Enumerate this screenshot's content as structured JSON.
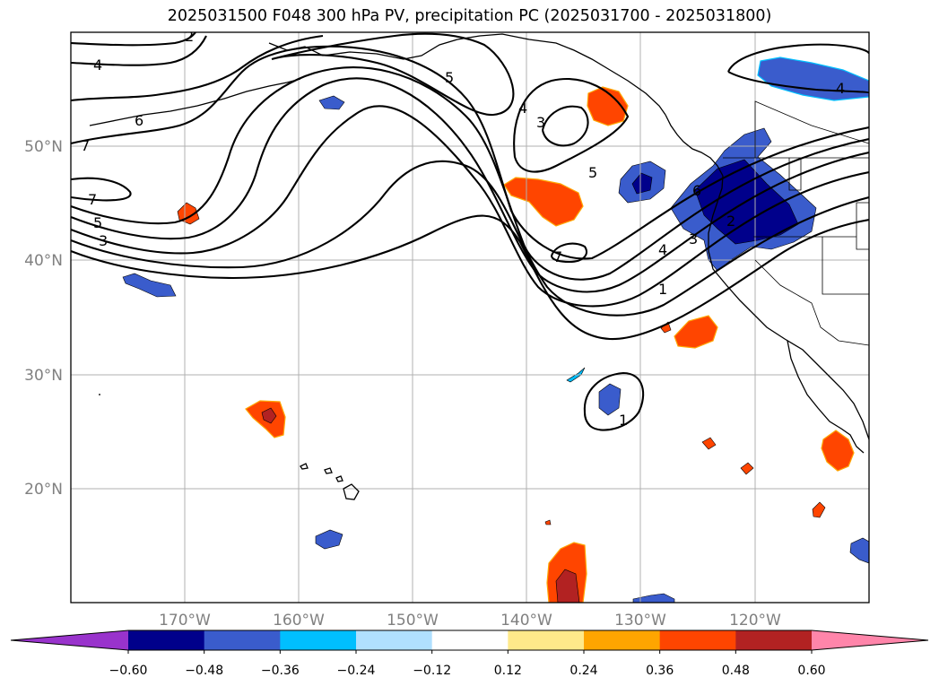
{
  "title": "2025031500 F048 300 hPa PV, precipitation PC (2025031700 - 2025031800)",
  "map": {
    "projection": "lat-lon",
    "lon_range": [
      -180,
      -110
    ],
    "lat_range": [
      10,
      60
    ],
    "grid": true,
    "lon_ticks": [
      "170°W",
      "160°W",
      "150°W",
      "140°W",
      "130°W",
      "120°W"
    ],
    "lat_ticks": [
      "50°N",
      "40°N",
      "30°N",
      "20°N"
    ],
    "pv_contour_labels": [
      "2",
      "4",
      "6",
      "7",
      "7",
      "5",
      "3",
      "5",
      "4",
      "3",
      "5",
      "7",
      "4",
      "3",
      "1",
      "6",
      "2",
      "4",
      "1"
    ]
  },
  "colorbar": {
    "levels": [
      "−0.60",
      "−0.48",
      "−0.36",
      "−0.24",
      "−0.12",
      "0.12",
      "0.24",
      "0.36",
      "0.48",
      "0.60"
    ],
    "colors": [
      "#9933cc",
      "#00008b",
      "#3a5ccc",
      "#00bfff",
      "#b0e0ff",
      "#ffffff",
      "#ffe98a",
      "#ffa500",
      "#ff4500",
      "#b22222",
      "#ff85aa"
    ],
    "extend": "both"
  },
  "shading_colors": {
    "neg_strong": "#00008b",
    "neg_mid": "#3a5ccc",
    "neg_weak": "#00bfff",
    "pos_weak": "#ffa500",
    "pos_mid": "#ff4500",
    "pos_strong": "#b22222",
    "pos_edge": "#ffe98a"
  }
}
